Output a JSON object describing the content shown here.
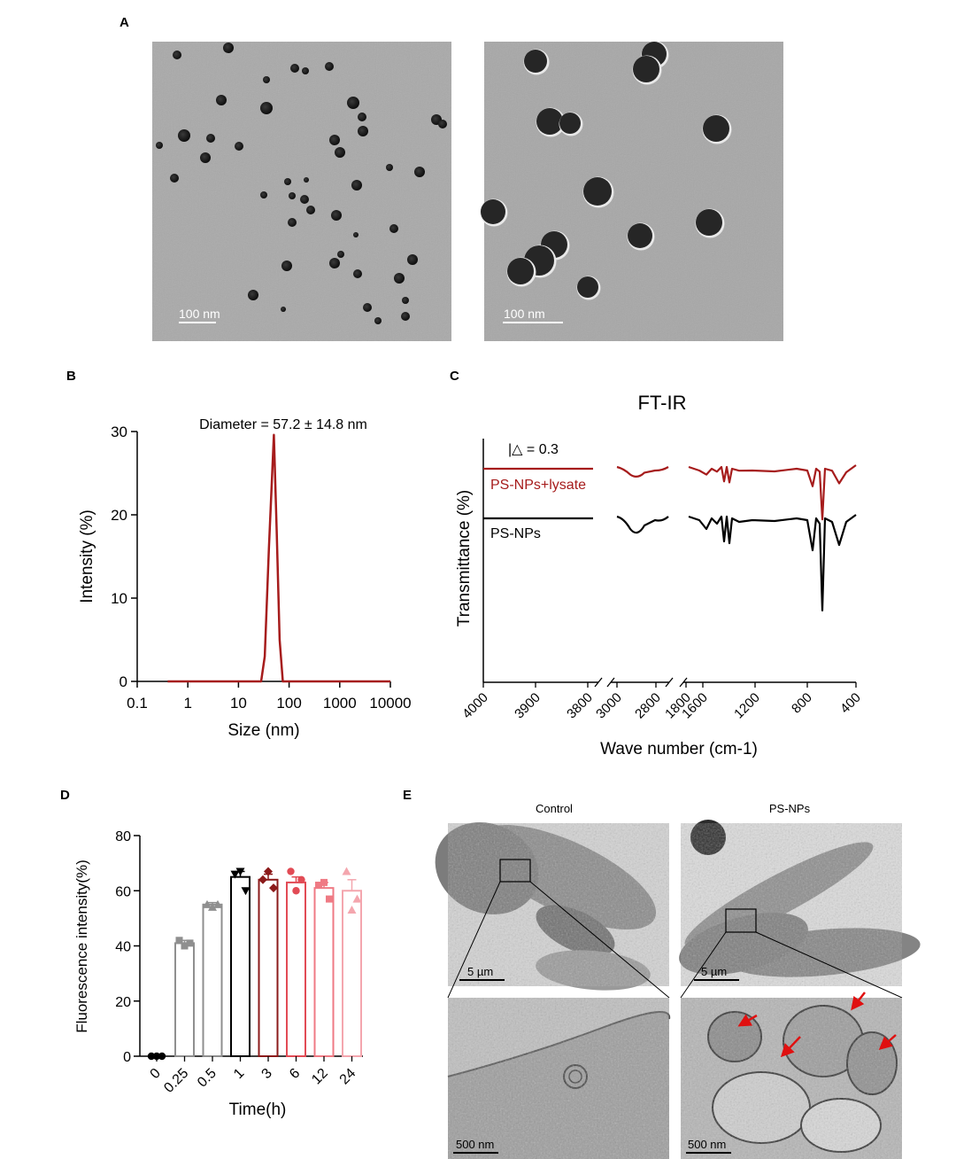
{
  "panels": {
    "A": {
      "label": "A",
      "images": [
        {
          "scale_bar": "100 nm"
        },
        {
          "scale_bar": "100 nm"
        }
      ]
    },
    "B": {
      "label": "B"
    },
    "C": {
      "label": "C"
    },
    "D": {
      "label": "D"
    },
    "E": {
      "label": "E",
      "columns": [
        {
          "title": "Control",
          "scale_top": "5 µm",
          "scale_bottom": "500 nm"
        },
        {
          "title": "PS-NPs",
          "scale_top": "5 µm",
          "scale_bottom": "500 nm"
        }
      ]
    }
  },
  "chart_data": [
    {
      "panel": "B",
      "type": "line",
      "title": "",
      "annotation": "Diameter = 57.2 ± 14.8 nm",
      "xlabel": "Size (nm)",
      "ylabel": "Intensity (%)",
      "xscale": "log",
      "xlim": [
        0.1,
        10000
      ],
      "ylim": [
        0,
        30
      ],
      "xticks": [
        "0.1",
        "1",
        "10",
        "100",
        "1000",
        "10000"
      ],
      "yticks": [
        "0",
        "10",
        "20",
        "30"
      ],
      "series": [
        {
          "color": "#a61c1c",
          "x": [
            0.4,
            1,
            10,
            28,
            33,
            40,
            50,
            57,
            65,
            75,
            10000
          ],
          "y": [
            0,
            0,
            0,
            0,
            3,
            16,
            29.6,
            18,
            5,
            0,
            0
          ]
        }
      ]
    },
    {
      "panel": "C",
      "type": "line",
      "title": "FT-IR",
      "xlabel": "Wave number (cm-1)",
      "ylabel": "Transmittance (%)",
      "scale_annotation": "|△ = 0.3",
      "xticks": [
        "4000",
        "3900",
        "3800",
        "3000",
        "2800",
        "1800",
        "1600",
        "1200",
        "800",
        "400"
      ],
      "axis_breaks": [
        "3800-3000",
        "2700-1800"
      ],
      "series": [
        {
          "name": "PS-NPs+lysate",
          "color": "#a61c1c"
        },
        {
          "name": "PS-NPs",
          "color": "#000000"
        }
      ]
    },
    {
      "panel": "D",
      "type": "bar",
      "title": "",
      "xlabel": "Time(h)",
      "ylabel": "Fluorescence intensity(%)",
      "ylim": [
        0,
        80
      ],
      "yticks": [
        "0",
        "20",
        "40",
        "60",
        "80"
      ],
      "categories": [
        "0",
        "0.25",
        "0.5",
        "1",
        "3",
        "6",
        "12",
        "24"
      ],
      "values": [
        0,
        41,
        55,
        65,
        64,
        63,
        61,
        60
      ],
      "points": [
        [
          0,
          0,
          0
        ],
        [
          42,
          40,
          41
        ],
        [
          55,
          54,
          55
        ],
        [
          66,
          67,
          60
        ],
        [
          64,
          67,
          61
        ],
        [
          67,
          60,
          64
        ],
        [
          62,
          63,
          57
        ],
        [
          67,
          53,
          57
        ]
      ],
      "errors": [
        0,
        1,
        0.7,
        2,
        2,
        2,
        2,
        4
      ],
      "colors": [
        "#000000",
        "#8f8f8f",
        "#8f8f8f",
        "#000000",
        "#8b1a1a",
        "#e24b55",
        "#ef7a84",
        "#f4a6ae"
      ],
      "markers": [
        "circle",
        "square",
        "triangle",
        "triangle-down",
        "diamond",
        "circle",
        "square",
        "triangle"
      ]
    }
  ]
}
